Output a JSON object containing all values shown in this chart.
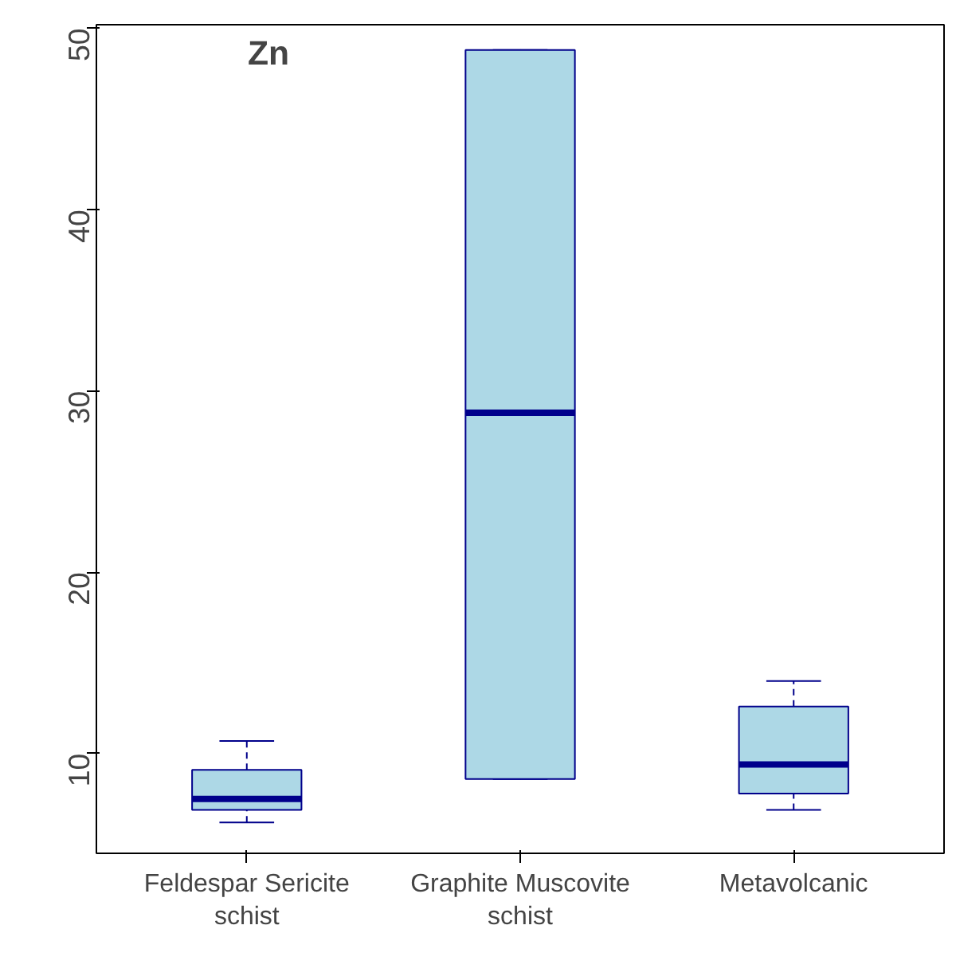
{
  "chart_data": {
    "type": "box",
    "categories": [
      "Feldespar Sericite schist",
      "Graphite Muscovite schist",
      "Metavolcanic"
    ],
    "boxes": [
      {
        "low": 6.2,
        "q1": 6.9,
        "median": 7.5,
        "q3": 9.1,
        "high": 10.7
      },
      {
        "low": 8.6,
        "q1": 8.6,
        "median": 28.8,
        "q3": 48.8,
        "high": 48.8
      },
      {
        "low": 6.9,
        "q1": 7.8,
        "median": 9.4,
        "q3": 12.6,
        "high": 14.0
      }
    ],
    "color": "#add8e6",
    "ylim": [
      4.5,
      50.2
    ],
    "yticks": [
      10,
      20,
      30,
      40,
      50
    ],
    "grid": false,
    "annotations": [
      "Zn"
    ]
  }
}
